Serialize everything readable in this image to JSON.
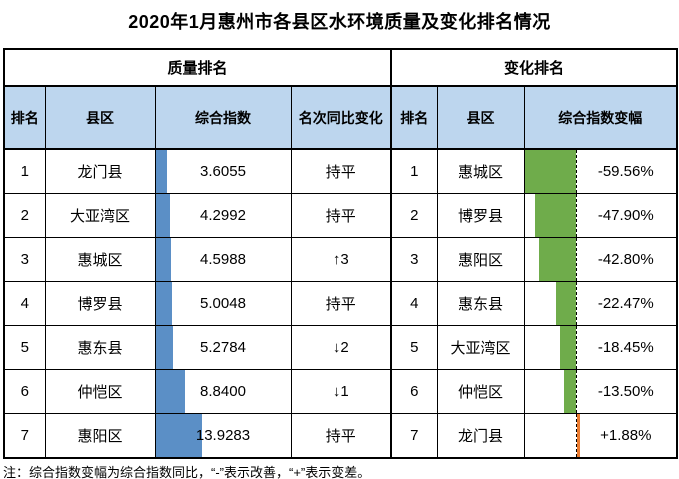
{
  "title": "2020年1月惠州市各县区水环境质量及变化排名情况",
  "note": "注：综合指数变幅为综合指数同比，“-”表示改善，“+”表示变差。",
  "colors": {
    "header_fill": "#BDD6EE",
    "bar_blue": "#5B8FC6",
    "bar_green": "#6FAC4B",
    "bar_orange": "#ED7D31",
    "border": "#000000"
  },
  "quality": {
    "section_label": "质量排名",
    "columns": {
      "rank": "排名",
      "district": "县区",
      "index": "综合指数",
      "rank_change": "名次同比变化"
    },
    "max_index": 13.9283,
    "rows": [
      {
        "rank": "1",
        "district": "龙门县",
        "index": "3.6055",
        "index_value": 3.6055,
        "rank_change": "持平"
      },
      {
        "rank": "2",
        "district": "大亚湾区",
        "index": "4.2992",
        "index_value": 4.2992,
        "rank_change": "持平"
      },
      {
        "rank": "3",
        "district": "惠城区",
        "index": "4.5988",
        "index_value": 4.5988,
        "rank_change": "↑3"
      },
      {
        "rank": "4",
        "district": "博罗县",
        "index": "5.0048",
        "index_value": 5.0048,
        "rank_change": "持平"
      },
      {
        "rank": "5",
        "district": "惠东县",
        "index": "5.2784",
        "index_value": 5.2784,
        "rank_change": "↓2"
      },
      {
        "rank": "6",
        "district": "仲恺区",
        "index": "8.8400",
        "index_value": 8.84,
        "rank_change": "↓1"
      },
      {
        "rank": "7",
        "district": "惠阳区",
        "index": "13.9283",
        "index_value": 13.9283,
        "rank_change": "持平"
      }
    ]
  },
  "change": {
    "section_label": "变化排名",
    "columns": {
      "rank": "排名",
      "district": "县区",
      "change": "综合指数变幅"
    },
    "axis_max": 59.56,
    "rows": [
      {
        "rank": "1",
        "district": "惠城区",
        "change": "-59.56%",
        "change_value": -59.56
      },
      {
        "rank": "2",
        "district": "博罗县",
        "change": "-47.90%",
        "change_value": -47.9
      },
      {
        "rank": "3",
        "district": "惠阳区",
        "change": "-42.80%",
        "change_value": -42.8
      },
      {
        "rank": "4",
        "district": "惠东县",
        "change": "-22.47%",
        "change_value": -22.47
      },
      {
        "rank": "5",
        "district": "大亚湾区",
        "change": "-18.45%",
        "change_value": -18.45
      },
      {
        "rank": "6",
        "district": "仲恺区",
        "change": "-13.50%",
        "change_value": -13.5
      },
      {
        "rank": "7",
        "district": "龙门县",
        "change": "+1.88%",
        "change_value": 1.88
      }
    ]
  },
  "chart_data": {
    "type": "table",
    "title": "2020年1月惠州市各县区水环境质量及变化排名情况",
    "sections": [
      {
        "name": "质量排名",
        "columns": [
          "排名",
          "县区",
          "综合指数",
          "名次同比变化"
        ],
        "rows": [
          [
            1,
            "龙门县",
            3.6055,
            "持平"
          ],
          [
            2,
            "大亚湾区",
            4.2992,
            "持平"
          ],
          [
            3,
            "惠城区",
            4.5988,
            "↑3"
          ],
          [
            4,
            "博罗县",
            5.0048,
            "持平"
          ],
          [
            5,
            "惠东县",
            5.2784,
            "↓2"
          ],
          [
            6,
            "仲恺区",
            8.84,
            "↓1"
          ],
          [
            7,
            "惠阳区",
            13.9283,
            "持平"
          ]
        ],
        "bars": "blue data bars in 综合指数 column, length proportional to value, max 13.9283"
      },
      {
        "name": "变化排名",
        "columns": [
          "排名",
          "县区",
          "综合指数变幅(%)"
        ],
        "rows": [
          [
            1,
            "惠城区",
            -59.56
          ],
          [
            2,
            "博罗县",
            -47.9
          ],
          [
            3,
            "惠阳区",
            -42.8
          ],
          [
            4,
            "惠东县",
            -22.47
          ],
          [
            5,
            "大亚湾区",
            -18.45
          ],
          [
            6,
            "仲恺区",
            -13.5
          ],
          [
            7,
            "龙门县",
            1.88
          ]
        ],
        "bars": "green bars left of dashed zero axis for negative values, orange bar right of axis for positive; axis range max |value| = 59.56"
      }
    ],
    "note": "注：综合指数变幅为综合指数同比，“-”表示改善，“+”表示变差。"
  }
}
